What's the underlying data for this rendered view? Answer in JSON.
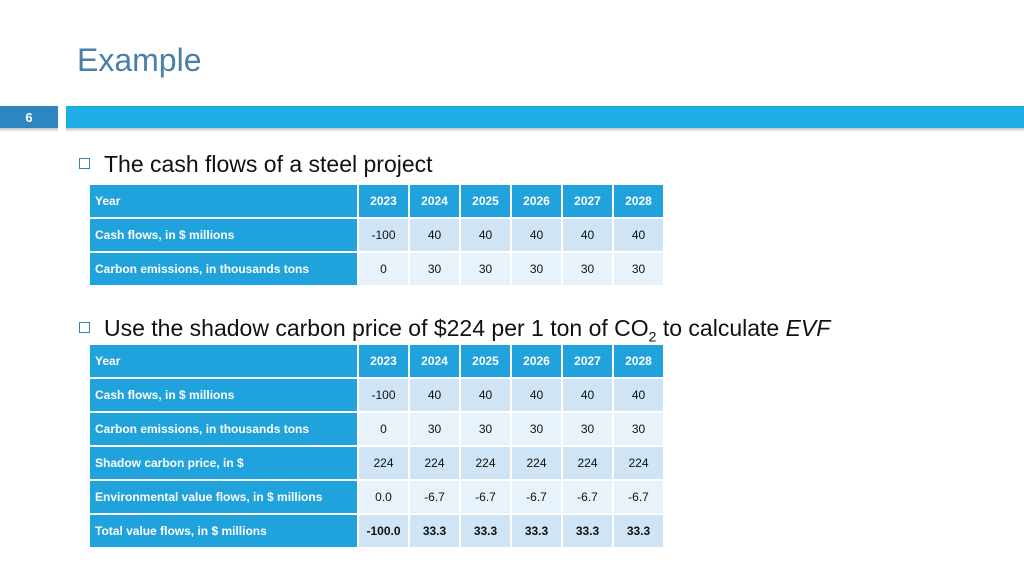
{
  "slide": {
    "title": "Example",
    "number": "6"
  },
  "bullets": [
    {
      "text": "The cash flows of a steel project"
    },
    {
      "text_before": "Use the shadow carbon price of $224 per 1 ton of CO",
      "subscript": "2",
      "text_after": " to calculate ",
      "italic": "EVF"
    }
  ],
  "table1": {
    "header": {
      "label": "Year",
      "values": [
        "2023",
        "2024",
        "2025",
        "2026",
        "2027",
        "2028"
      ]
    },
    "rows": [
      {
        "label": "Cash flows, in $ millions",
        "values": [
          "-100",
          "40",
          "40",
          "40",
          "40",
          "40"
        ]
      },
      {
        "label": "Carbon emissions, in thousands tons",
        "values": [
          "0",
          "30",
          "30",
          "30",
          "30",
          "30"
        ]
      }
    ]
  },
  "table2": {
    "header": {
      "label": "Year",
      "values": [
        "2023",
        "2024",
        "2025",
        "2026",
        "2027",
        "2028"
      ]
    },
    "rows": [
      {
        "label": "Cash flows, in $ millions",
        "values": [
          "-100",
          "40",
          "40",
          "40",
          "40",
          "40"
        ]
      },
      {
        "label": "Carbon emissions, in thousands tons",
        "values": [
          "0",
          "30",
          "30",
          "30",
          "30",
          "30"
        ]
      },
      {
        "label": "Shadow carbon price, in $",
        "values": [
          "224",
          "224",
          "224",
          "224",
          "224",
          "224"
        ]
      },
      {
        "label": "Environmental value flows, in $ millions",
        "values": [
          "0.0",
          "-6.7",
          "-6.7",
          "-6.7",
          "-6.7",
          "-6.7"
        ]
      },
      {
        "label": "Total value flows, in $ millions",
        "values": [
          "-100.0",
          "33.3",
          "33.3",
          "33.3",
          "33.3",
          "33.3"
        ]
      }
    ]
  }
}
